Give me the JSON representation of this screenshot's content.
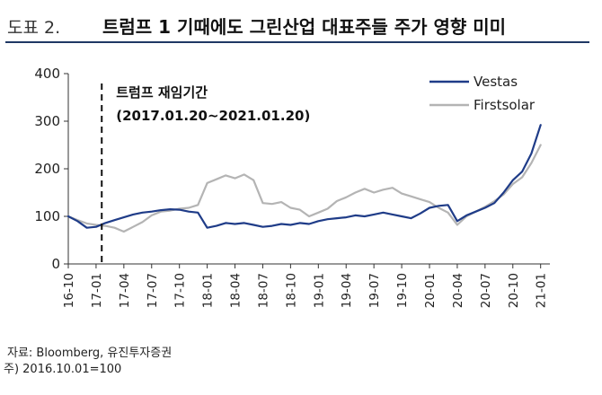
{
  "header": {
    "prefix": "도표 2.",
    "title": "트럼프 1 기때에도 그린산업 대표주들 주가 영향 미미"
  },
  "footer": {
    "source": "자료: Bloomberg, 유진투자증권",
    "note": "주) 2016.10.01=100"
  },
  "chart_data": {
    "type": "line",
    "title": "트럼프 1 기때에도 그린산업 대표주들 주가 영향 미미",
    "xlabel": "",
    "ylabel": "",
    "ylim": [
      0,
      400
    ],
    "yticks": [
      0,
      100,
      200,
      300,
      400
    ],
    "xlim": [
      "16-10",
      "21-02"
    ],
    "xticks": [
      "16-10",
      "17-01",
      "17-04",
      "17-07",
      "17-10",
      "18-01",
      "18-04",
      "18-07",
      "18-10",
      "19-01",
      "19-04",
      "19-07",
      "19-10",
      "20-01",
      "20-04",
      "20-07",
      "20-10",
      "21-01"
    ],
    "grid": false,
    "legend": "top-right",
    "series": [
      {
        "name": "Vestas",
        "color": "#1f3c88",
        "x": [
          "16-10",
          "16-11",
          "16-12",
          "17-01",
          "17-02",
          "17-03",
          "17-04",
          "17-05",
          "17-06",
          "17-07",
          "17-08",
          "17-09",
          "17-10",
          "17-11",
          "17-12",
          "18-01",
          "18-02",
          "18-03",
          "18-04",
          "18-05",
          "18-06",
          "18-07",
          "18-08",
          "18-09",
          "18-10",
          "18-11",
          "18-12",
          "19-01",
          "19-02",
          "19-03",
          "19-04",
          "19-05",
          "19-06",
          "19-07",
          "19-08",
          "19-09",
          "19-10",
          "19-11",
          "19-12",
          "20-01",
          "20-02",
          "20-03",
          "20-04",
          "20-05",
          "20-06",
          "20-07",
          "20-08",
          "20-09",
          "20-10",
          "20-11",
          "20-12",
          "21-01"
        ],
        "values": [
          100,
          90,
          76,
          78,
          86,
          92,
          98,
          104,
          108,
          110,
          113,
          115,
          114,
          110,
          108,
          76,
          80,
          86,
          84,
          86,
          82,
          78,
          80,
          84,
          82,
          86,
          84,
          90,
          94,
          96,
          98,
          102,
          100,
          104,
          108,
          104,
          100,
          96,
          106,
          118,
          122,
          124,
          90,
          102,
          110,
          118,
          128,
          150,
          176,
          194,
          232,
          292
        ]
      },
      {
        "name": "Firstsolar",
        "color": "#b4b4b4",
        "x": [
          "16-10",
          "16-11",
          "16-12",
          "17-01",
          "17-02",
          "17-03",
          "17-04",
          "17-05",
          "17-06",
          "17-07",
          "17-08",
          "17-09",
          "17-10",
          "17-11",
          "17-12",
          "18-01",
          "18-02",
          "18-03",
          "18-04",
          "18-05",
          "18-06",
          "18-07",
          "18-08",
          "18-09",
          "18-10",
          "18-11",
          "18-12",
          "19-01",
          "19-02",
          "19-03",
          "19-04",
          "19-05",
          "19-06",
          "19-07",
          "19-08",
          "19-09",
          "19-10",
          "19-11",
          "19-12",
          "20-01",
          "20-02",
          "20-03",
          "20-04",
          "20-05",
          "20-06",
          "20-07",
          "20-08",
          "20-09",
          "20-10",
          "20-11",
          "20-12",
          "21-01"
        ],
        "values": [
          100,
          92,
          85,
          82,
          80,
          76,
          68,
          78,
          88,
          102,
          110,
          112,
          116,
          118,
          124,
          170,
          178,
          186,
          180,
          188,
          176,
          128,
          126,
          130,
          118,
          114,
          100,
          108,
          116,
          132,
          140,
          150,
          158,
          150,
          156,
          160,
          148,
          142,
          136,
          130,
          118,
          108,
          82,
          100,
          110,
          120,
          132,
          146,
          168,
          182,
          212,
          250
        ]
      }
    ],
    "annotations": [
      {
        "type": "vline",
        "x": "17-01-20",
        "style": "dashed",
        "label_line1": "트럼프 재임기간",
        "label_line2": "(2017.01.20~2021.01.20)"
      }
    ]
  }
}
